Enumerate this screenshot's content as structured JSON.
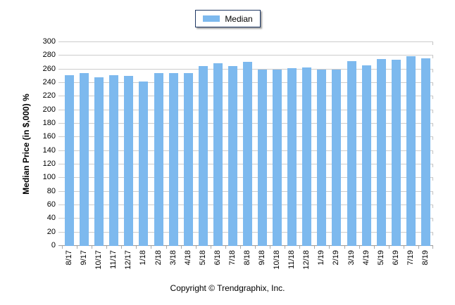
{
  "legend": {
    "label": "Median",
    "swatch_color": "#7db9ee"
  },
  "y_axis": {
    "title": "Median Price (in $,000) %",
    "min": 0,
    "max": 300,
    "step": 20
  },
  "footer": {
    "copyright": "Copyright © Trendgraphix, Inc."
  },
  "chart_data": {
    "type": "bar",
    "title": "",
    "series": [
      {
        "name": "Median",
        "values": [
          251,
          255,
          248,
          251,
          250,
          242,
          255,
          255,
          255,
          265,
          269,
          265,
          271,
          260,
          260,
          262,
          263,
          260,
          260,
          272,
          266,
          275,
          274,
          279,
          276
        ]
      }
    ],
    "categories": [
      "8/17",
      "9/17",
      "10/17",
      "11/17",
      "12/17",
      "1/18",
      "2/18",
      "3/18",
      "4/18",
      "5/18",
      "6/18",
      "7/18",
      "8/18",
      "9/18",
      "10/18",
      "11/18",
      "12/18",
      "1/19",
      "2/19",
      "3/19",
      "4/19",
      "5/19",
      "6/19",
      "7/19",
      "8/19"
    ],
    "xlabel": "",
    "ylabel": "Median Price (in $,000) %",
    "ylim": [
      0,
      300
    ],
    "ytick_step": 20,
    "grid": true,
    "legend_position": "top-center",
    "bar_color": "#7db9ee",
    "gridline_color": "#cccccc",
    "axis_color": "#999999"
  }
}
